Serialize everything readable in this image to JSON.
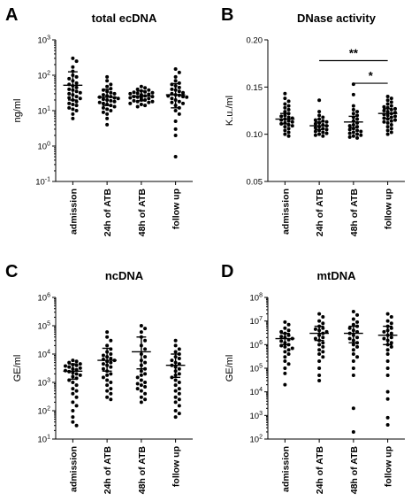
{
  "chart_data": [
    {
      "letter": "A",
      "type": "scatter",
      "title": "total ecDNA",
      "ylabel": "ng/ml",
      "scale": "log",
      "ylim": [
        0.1,
        1000
      ],
      "yticks": [
        0.1,
        1,
        10,
        100,
        1000
      ],
      "ytick_labels": [
        {
          "base": "10",
          "exp": "-1"
        },
        {
          "base": "10",
          "exp": "0"
        },
        {
          "base": "10",
          "exp": "1"
        },
        {
          "base": "10",
          "exp": "2"
        },
        {
          "base": "10",
          "exp": "3"
        }
      ],
      "categories": [
        "admission",
        "24h of ATB",
        "48h of ATB",
        "follow up"
      ],
      "groups": [
        {
          "mean": 52,
          "upper": 125,
          "lower": 20,
          "points": [
            300,
            250,
            170,
            130,
            100,
            90,
            80,
            70,
            60,
            55,
            50,
            45,
            40,
            38,
            35,
            32,
            30,
            28,
            25,
            23,
            22,
            20,
            18,
            16,
            15,
            14,
            12,
            11,
            10,
            8,
            6
          ]
        },
        {
          "mean": 24,
          "upper": 40,
          "lower": 14,
          "points": [
            90,
            70,
            55,
            48,
            42,
            38,
            35,
            32,
            30,
            28,
            26,
            25,
            24,
            23,
            22,
            21,
            20,
            19,
            18,
            17,
            16,
            15,
            14,
            13,
            12,
            11,
            10,
            9,
            8,
            6,
            4
          ]
        },
        {
          "mean": 26,
          "upper": 36,
          "lower": 19,
          "points": [
            48,
            44,
            40,
            38,
            36,
            34,
            33,
            32,
            31,
            30,
            29,
            28,
            27,
            26,
            25,
            25,
            24,
            24,
            23,
            22,
            21,
            20,
            20,
            19,
            18,
            18,
            17,
            16,
            15,
            14,
            13
          ]
        },
        {
          "mean": 28,
          "upper": 58,
          "lower": 12,
          "points": [
            150,
            120,
            90,
            70,
            60,
            55,
            50,
            45,
            40,
            38,
            35,
            32,
            30,
            28,
            27,
            26,
            25,
            24,
            22,
            20,
            18,
            17,
            16,
            14,
            12,
            10,
            8,
            5,
            3,
            2,
            0.5
          ]
        }
      ]
    },
    {
      "letter": "B",
      "type": "scatter",
      "title": "DNase activity",
      "ylabel": "K.u./ml",
      "scale": "linear",
      "ylim": [
        0.05,
        0.2
      ],
      "yticks": [
        0.05,
        0.1,
        0.15,
        0.2
      ],
      "ytick_labels": [
        {
          "base": "0.05",
          "exp": ""
        },
        {
          "base": "0.10",
          "exp": ""
        },
        {
          "base": "0.15",
          "exp": ""
        },
        {
          "base": "0.20",
          "exp": ""
        }
      ],
      "categories": [
        "admission",
        "24h of ATB",
        "48h of ATB",
        "follow up"
      ],
      "groups": [
        {
          "mean": 0.116,
          "upper": 0.122,
          "lower": 0.111,
          "points": [
            0.143,
            0.138,
            0.135,
            0.132,
            0.13,
            0.128,
            0.126,
            0.124,
            0.122,
            0.12,
            0.119,
            0.118,
            0.117,
            0.116,
            0.115,
            0.114,
            0.113,
            0.112,
            0.111,
            0.11,
            0.109,
            0.108,
            0.106,
            0.104,
            0.102,
            0.1,
            0.098
          ]
        },
        {
          "mean": 0.109,
          "upper": 0.113,
          "lower": 0.105,
          "points": [
            0.136,
            0.124,
            0.12,
            0.118,
            0.116,
            0.115,
            0.114,
            0.113,
            0.112,
            0.111,
            0.11,
            0.109,
            0.108,
            0.107,
            0.106,
            0.105,
            0.104,
            0.103,
            0.102,
            0.101,
            0.1,
            0.099,
            0.098
          ]
        },
        {
          "mean": 0.113,
          "upper": 0.119,
          "lower": 0.107,
          "points": [
            0.153,
            0.142,
            0.13,
            0.126,
            0.124,
            0.122,
            0.12,
            0.118,
            0.116,
            0.114,
            0.112,
            0.11,
            0.109,
            0.108,
            0.106,
            0.105,
            0.104,
            0.103,
            0.102,
            0.101,
            0.1,
            0.099,
            0.098,
            0.097,
            0.096
          ]
        },
        {
          "mean": 0.122,
          "upper": 0.127,
          "lower": 0.117,
          "points": [
            0.14,
            0.138,
            0.136,
            0.134,
            0.132,
            0.13,
            0.129,
            0.128,
            0.127,
            0.126,
            0.125,
            0.124,
            0.123,
            0.122,
            0.121,
            0.12,
            0.119,
            0.118,
            0.117,
            0.116,
            0.115,
            0.114,
            0.113,
            0.112,
            0.11,
            0.108,
            0.106,
            0.104,
            0.102,
            0.1
          ]
        }
      ],
      "significance": [
        {
          "from": 1,
          "to": 3,
          "y": 0.178,
          "label": "**"
        },
        {
          "from": 2,
          "to": 3,
          "y": 0.154,
          "label": "*"
        }
      ]
    },
    {
      "letter": "C",
      "type": "scatter",
      "title": "ncDNA",
      "ylabel": "GE/ml",
      "scale": "log",
      "ylim": [
        10,
        1000000
      ],
      "yticks": [
        10,
        100,
        1000,
        10000,
        100000,
        1000000
      ],
      "ytick_labels": [
        {
          "base": "10",
          "exp": "1"
        },
        {
          "base": "10",
          "exp": "2"
        },
        {
          "base": "10",
          "exp": "3"
        },
        {
          "base": "10",
          "exp": "4"
        },
        {
          "base": "10",
          "exp": "5"
        },
        {
          "base": "10",
          "exp": "6"
        }
      ],
      "categories": [
        "admission",
        "24h of ATB",
        "48h of ATB",
        "follow up"
      ],
      "groups": [
        {
          "mean": 2500,
          "upper": 4500,
          "lower": 1300,
          "points": [
            6000,
            5500,
            5000,
            4500,
            4200,
            4000,
            3800,
            3500,
            3200,
            3000,
            2800,
            2600,
            2400,
            2200,
            2000,
            1800,
            1600,
            1400,
            1200,
            1000,
            800,
            600,
            500,
            400,
            300,
            200,
            150,
            100,
            60,
            40,
            30
          ]
        },
        {
          "mean": 6000,
          "upper": 16000,
          "lower": 2500,
          "points": [
            60000,
            40000,
            30000,
            20000,
            15000,
            12000,
            10000,
            9000,
            8000,
            7000,
            6500,
            6000,
            5500,
            5000,
            4500,
            4000,
            3500,
            3000,
            2500,
            2000,
            1800,
            1500,
            1200,
            1000,
            800,
            600,
            500,
            400,
            300,
            250
          ]
        },
        {
          "mean": 12000,
          "upper": 40000,
          "lower": 3000,
          "points": [
            100000,
            80000,
            60000,
            40000,
            30000,
            20000,
            15000,
            10000,
            8000,
            6000,
            5000,
            4000,
            3000,
            2500,
            2000,
            1800,
            1500,
            1200,
            1000,
            900,
            800,
            700,
            600,
            500,
            400,
            300,
            250,
            200
          ]
        },
        {
          "mean": 4000,
          "upper": 10000,
          "lower": 1500,
          "points": [
            30000,
            20000,
            15000,
            12000,
            10000,
            8000,
            7000,
            6000,
            5000,
            4500,
            4000,
            3500,
            3000,
            2500,
            2000,
            1800,
            1500,
            1200,
            1000,
            800,
            600,
            500,
            400,
            300,
            250,
            200,
            150,
            100,
            80,
            60
          ]
        }
      ]
    },
    {
      "letter": "D",
      "type": "scatter",
      "title": "mtDNA",
      "ylabel": "GE/ml",
      "scale": "log",
      "ylim": [
        100,
        100000000
      ],
      "yticks": [
        100,
        1000,
        10000,
        100000,
        1000000,
        10000000,
        100000000
      ],
      "ytick_labels": [
        {
          "base": "10",
          "exp": "2"
        },
        {
          "base": "10",
          "exp": "3"
        },
        {
          "base": "10",
          "exp": "4"
        },
        {
          "base": "10",
          "exp": "5"
        },
        {
          "base": "10",
          "exp": "6"
        },
        {
          "base": "10",
          "exp": "7"
        },
        {
          "base": "10",
          "exp": "8"
        }
      ],
      "categories": [
        "admission",
        "24h of ATB",
        "48h of ATB",
        "follow up"
      ],
      "groups": [
        {
          "mean": 1800000,
          "upper": 3000000,
          "lower": 1000000,
          "points": [
            9000000,
            7000000,
            5000000,
            4000000,
            3500000,
            3000000,
            2500000,
            2200000,
            2000000,
            1800000,
            1600000,
            1400000,
            1200000,
            1000000,
            900000,
            800000,
            700000,
            600000,
            500000,
            400000,
            300000,
            200000,
            150000,
            100000,
            60000,
            20000
          ]
        },
        {
          "mean": 3000000,
          "upper": 6000000,
          "lower": 1500000,
          "points": [
            20000000,
            15000000,
            10000000,
            8000000,
            6000000,
            5000000,
            4500000,
            4000000,
            3500000,
            3000000,
            2500000,
            2000000,
            1800000,
            1500000,
            1200000,
            1000000,
            800000,
            600000,
            500000,
            400000,
            300000,
            200000,
            100000,
            50000,
            30000
          ]
        },
        {
          "mean": 3000000,
          "upper": 6000000,
          "lower": 1200000,
          "points": [
            25000000,
            18000000,
            12000000,
            9000000,
            7000000,
            6000000,
            5000000,
            4000000,
            3500000,
            3000000,
            2500000,
            2000000,
            1800000,
            1500000,
            1200000,
            1000000,
            800000,
            600000,
            400000,
            300000,
            200000,
            100000,
            50000,
            2000,
            200
          ]
        },
        {
          "mean": 2500000,
          "upper": 6000000,
          "lower": 1000000,
          "points": [
            20000000,
            15000000,
            10000000,
            8000000,
            6000000,
            5000000,
            4000000,
            3500000,
            3000000,
            2500000,
            2000000,
            1800000,
            1500000,
            1200000,
            1000000,
            800000,
            600000,
            400000,
            200000,
            100000,
            50000,
            10000,
            5000,
            800,
            400
          ]
        }
      ]
    }
  ]
}
